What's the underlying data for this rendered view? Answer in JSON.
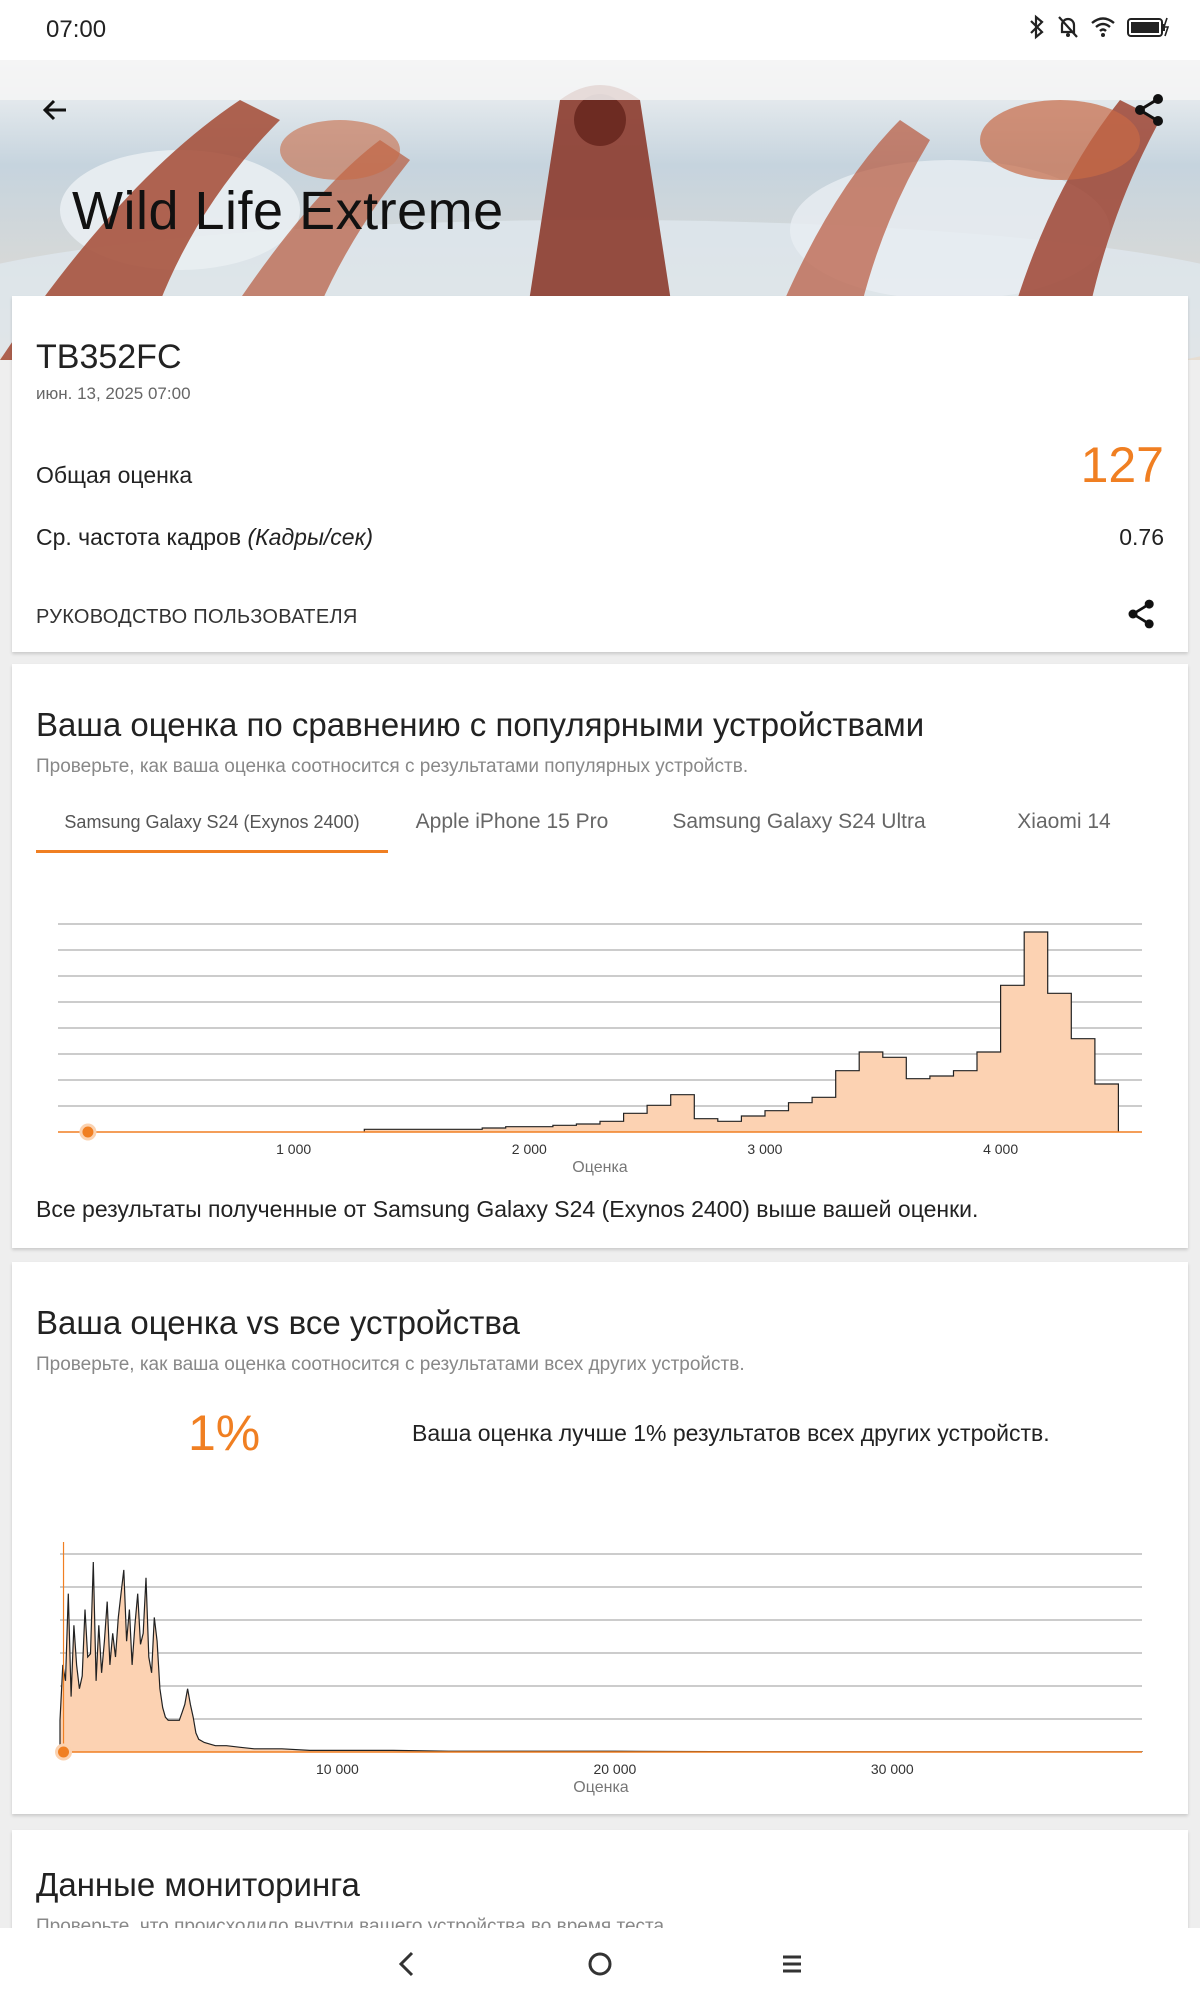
{
  "status_bar": {
    "time": "07:00"
  },
  "hero": {
    "title": "Wild Life Extreme"
  },
  "result": {
    "device": "TB352FC",
    "date": "июн. 13, 2025 07:00",
    "overall_label": "Общая оценка",
    "overall_score": "127",
    "fps_label": "Ср. частота кадров",
    "fps_unit": "(Кадры/сек)",
    "fps_value": "0.76",
    "guide_label": "РУКОВОДСТВО ПОЛЬЗОВАТЕЛЯ"
  },
  "popular": {
    "title": "Ваша оценка по сравнению с популярными устройствами",
    "subtitle": "Проверьте, как ваша оценка соотносится с результатами популярных устройств.",
    "tabs": [
      {
        "label": "Samsung Galaxy S24 (Exynos 2400)",
        "active": true
      },
      {
        "label": "Apple iPhone 15 Pro",
        "active": false
      },
      {
        "label": "Samsung Galaxy S24 Ultra",
        "active": false
      },
      {
        "label": "Xiaomi 14",
        "active": false
      }
    ],
    "footer_text": "Все результаты полученные от Samsung Galaxy S24 (Exynos 2400) выше вашей оценки."
  },
  "all_devices": {
    "title": "Ваша оценка vs все устройства",
    "subtitle": "Проверьте, как ваша оценка соотносится с результатами всех других устройств.",
    "percent": "1%",
    "percent_text": "Ваша оценка лучше 1% результатов всех других устройств."
  },
  "monitoring": {
    "title": "Данные мониторинга",
    "subtitle": "Проверьте, что происходило внутри вашего устройства во время теста."
  },
  "chart_data": [
    {
      "type": "area",
      "xlabel": "Оценка",
      "xlim": [
        0,
        4600
      ],
      "x_ticks": [
        1000,
        2000,
        3000,
        4000
      ],
      "x_tick_labels": [
        "1 000",
        "2 000",
        "3 000",
        "4 000"
      ],
      "grid": true,
      "your_score": 127,
      "bin_width": 100,
      "bins_x": [
        1300,
        1400,
        1500,
        1600,
        1700,
        1800,
        1900,
        2000,
        2100,
        2200,
        2300,
        2400,
        2500,
        2600,
        2700,
        2800,
        2900,
        3000,
        3100,
        3200,
        3300,
        3400,
        3500,
        3600,
        3700,
        3800,
        3900,
        4000,
        4100,
        4200,
        4300,
        4400
      ],
      "bins_y": [
        1,
        1,
        1,
        1,
        1,
        1.5,
        2,
        2,
        2.5,
        3,
        4,
        7,
        10,
        14,
        5,
        4,
        6,
        8,
        11,
        13,
        23,
        30,
        28,
        20,
        21,
        23,
        30,
        55,
        75,
        52,
        35,
        18
      ]
    },
    {
      "type": "area",
      "xlabel": "Оценка",
      "xlim": [
        0,
        39000
      ],
      "x_ticks": [
        10000,
        20000,
        30000
      ],
      "x_tick_labels": [
        "10 000",
        "20 000",
        "30 000"
      ],
      "grid": true,
      "your_score": 127,
      "x": [
        0,
        100,
        200,
        300,
        400,
        500,
        600,
        700,
        800,
        900,
        1000,
        1100,
        1200,
        1300,
        1400,
        1500,
        1600,
        1700,
        1800,
        1900,
        2000,
        2100,
        2200,
        2300,
        2400,
        2500,
        2600,
        2700,
        2800,
        2900,
        3000,
        3100,
        3200,
        3300,
        3400,
        3500,
        3600,
        3700,
        3800,
        3900,
        4000,
        4100,
        4200,
        4300,
        4400,
        4500,
        4600,
        4700,
        4800,
        4900,
        5000,
        5200,
        5400,
        5600,
        5800,
        6000,
        6500,
        7000,
        7500,
        8000,
        9000,
        10000,
        11000,
        12000,
        14000,
        16000,
        18000,
        20000,
        22000,
        25000,
        30000,
        35000,
        39000
      ],
      "y": [
        20,
        55,
        45,
        100,
        35,
        80,
        55,
        40,
        48,
        90,
        60,
        62,
        120,
        45,
        80,
        50,
        70,
        95,
        55,
        75,
        60,
        85,
        100,
        115,
        70,
        90,
        55,
        80,
        100,
        68,
        75,
        110,
        60,
        50,
        85,
        70,
        40,
        28,
        22,
        20,
        20,
        20,
        20,
        20,
        25,
        30,
        40,
        30,
        22,
        12,
        8,
        6,
        5,
        4,
        4,
        4,
        3,
        2,
        2,
        2,
        1,
        1,
        1,
        1,
        0.5,
        0.5,
        0.5,
        0.5,
        0.3,
        0.2,
        0.1,
        0.1,
        0.1
      ]
    }
  ]
}
